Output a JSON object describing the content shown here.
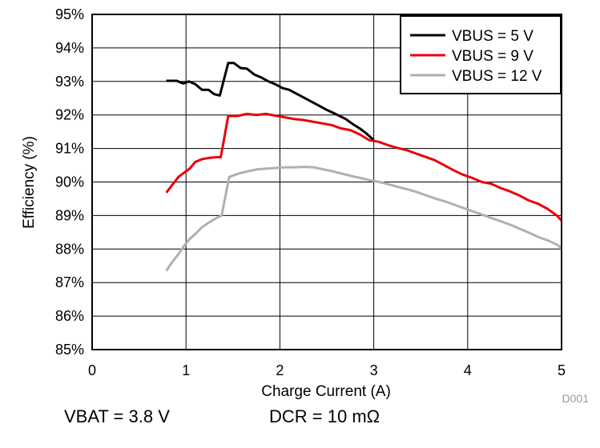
{
  "chart_data": {
    "type": "line",
    "xlabel": "Charge Current (A)",
    "ylabel": "Efficiency (%)",
    "xlim": [
      0,
      5
    ],
    "ylim": [
      85,
      95
    ],
    "x_ticks": [
      "0",
      "1",
      "2",
      "3",
      "4",
      "5"
    ],
    "y_ticks": [
      "85%",
      "86%",
      "87%",
      "88%",
      "89%",
      "90%",
      "91%",
      "92%",
      "93%",
      "94%",
      "95%"
    ],
    "grid": true,
    "legend_position": "top-right",
    "series": [
      {
        "name": "VBUS = 5 V",
        "color": "#000000",
        "points": [
          [
            0.79,
            93.02
          ],
          [
            0.9,
            93.02
          ],
          [
            0.97,
            92.94
          ],
          [
            1.03,
            93.0
          ],
          [
            1.1,
            92.92
          ],
          [
            1.17,
            92.75
          ],
          [
            1.24,
            92.75
          ],
          [
            1.3,
            92.62
          ],
          [
            1.36,
            92.58
          ],
          [
            1.45,
            93.55
          ],
          [
            1.51,
            93.55
          ],
          [
            1.58,
            93.4
          ],
          [
            1.65,
            93.38
          ],
          [
            1.73,
            93.2
          ],
          [
            1.8,
            93.12
          ],
          [
            1.88,
            93.0
          ],
          [
            1.95,
            92.92
          ],
          [
            2.03,
            92.8
          ],
          [
            2.1,
            92.75
          ],
          [
            2.2,
            92.6
          ],
          [
            2.3,
            92.45
          ],
          [
            2.4,
            92.3
          ],
          [
            2.5,
            92.15
          ],
          [
            2.6,
            92.02
          ],
          [
            2.7,
            91.88
          ],
          [
            2.78,
            91.72
          ],
          [
            2.85,
            91.6
          ],
          [
            2.92,
            91.45
          ],
          [
            3.0,
            91.25
          ]
        ]
      },
      {
        "name": "VBUS = 9 V",
        "color": "#e8000b",
        "points": [
          [
            0.79,
            89.68
          ],
          [
            0.85,
            89.9
          ],
          [
            0.92,
            90.15
          ],
          [
            0.98,
            90.28
          ],
          [
            1.04,
            90.4
          ],
          [
            1.1,
            90.6
          ],
          [
            1.17,
            90.68
          ],
          [
            1.25,
            90.72
          ],
          [
            1.32,
            90.74
          ],
          [
            1.37,
            90.74
          ],
          [
            1.45,
            91.97
          ],
          [
            1.55,
            91.97
          ],
          [
            1.65,
            92.03
          ],
          [
            1.75,
            92.0
          ],
          [
            1.85,
            92.03
          ],
          [
            1.95,
            91.98
          ],
          [
            2.05,
            91.93
          ],
          [
            2.15,
            91.88
          ],
          [
            2.25,
            91.85
          ],
          [
            2.35,
            91.8
          ],
          [
            2.45,
            91.75
          ],
          [
            2.55,
            91.7
          ],
          [
            2.65,
            91.6
          ],
          [
            2.75,
            91.55
          ],
          [
            2.85,
            91.42
          ],
          [
            2.95,
            91.25
          ],
          [
            3.05,
            91.2
          ],
          [
            3.15,
            91.1
          ],
          [
            3.25,
            91.02
          ],
          [
            3.35,
            90.95
          ],
          [
            3.45,
            90.85
          ],
          [
            3.55,
            90.75
          ],
          [
            3.65,
            90.65
          ],
          [
            3.75,
            90.5
          ],
          [
            3.85,
            90.35
          ],
          [
            3.95,
            90.22
          ],
          [
            4.05,
            90.12
          ],
          [
            4.15,
            90.0
          ],
          [
            4.25,
            89.95
          ],
          [
            4.35,
            89.82
          ],
          [
            4.45,
            89.72
          ],
          [
            4.55,
            89.6
          ],
          [
            4.65,
            89.45
          ],
          [
            4.75,
            89.35
          ],
          [
            4.85,
            89.2
          ],
          [
            4.95,
            89.0
          ],
          [
            5.0,
            88.85
          ]
        ]
      },
      {
        "name": "VBUS = 12 V",
        "color": "#b0b0b0",
        "points": [
          [
            0.79,
            87.35
          ],
          [
            0.85,
            87.6
          ],
          [
            0.92,
            87.85
          ],
          [
            0.98,
            88.1
          ],
          [
            1.04,
            88.3
          ],
          [
            1.1,
            88.45
          ],
          [
            1.17,
            88.65
          ],
          [
            1.25,
            88.8
          ],
          [
            1.32,
            88.92
          ],
          [
            1.38,
            89.0
          ],
          [
            1.46,
            90.15
          ],
          [
            1.56,
            90.25
          ],
          [
            1.66,
            90.32
          ],
          [
            1.76,
            90.38
          ],
          [
            1.86,
            90.4
          ],
          [
            1.96,
            90.42
          ],
          [
            2.06,
            90.44
          ],
          [
            2.16,
            90.44
          ],
          [
            2.26,
            90.45
          ],
          [
            2.36,
            90.44
          ],
          [
            2.46,
            90.38
          ],
          [
            2.56,
            90.32
          ],
          [
            2.66,
            90.25
          ],
          [
            2.76,
            90.18
          ],
          [
            2.86,
            90.12
          ],
          [
            2.96,
            90.05
          ],
          [
            3.06,
            90.0
          ],
          [
            3.16,
            89.93
          ],
          [
            3.26,
            89.85
          ],
          [
            3.36,
            89.78
          ],
          [
            3.46,
            89.7
          ],
          [
            3.56,
            89.6
          ],
          [
            3.66,
            89.5
          ],
          [
            3.76,
            89.42
          ],
          [
            3.86,
            89.32
          ],
          [
            3.96,
            89.22
          ],
          [
            4.06,
            89.12
          ],
          [
            4.16,
            89.02
          ],
          [
            4.26,
            88.92
          ],
          [
            4.36,
            88.82
          ],
          [
            4.46,
            88.72
          ],
          [
            4.56,
            88.6
          ],
          [
            4.66,
            88.48
          ],
          [
            4.76,
            88.35
          ],
          [
            4.86,
            88.25
          ],
          [
            4.96,
            88.12
          ],
          [
            5.0,
            88.0
          ]
        ]
      }
    ],
    "annotations": {
      "figure_id": "D001",
      "vbat": "VBAT = 3.8 V",
      "dcr": "DCR = 10 mΩ"
    }
  }
}
